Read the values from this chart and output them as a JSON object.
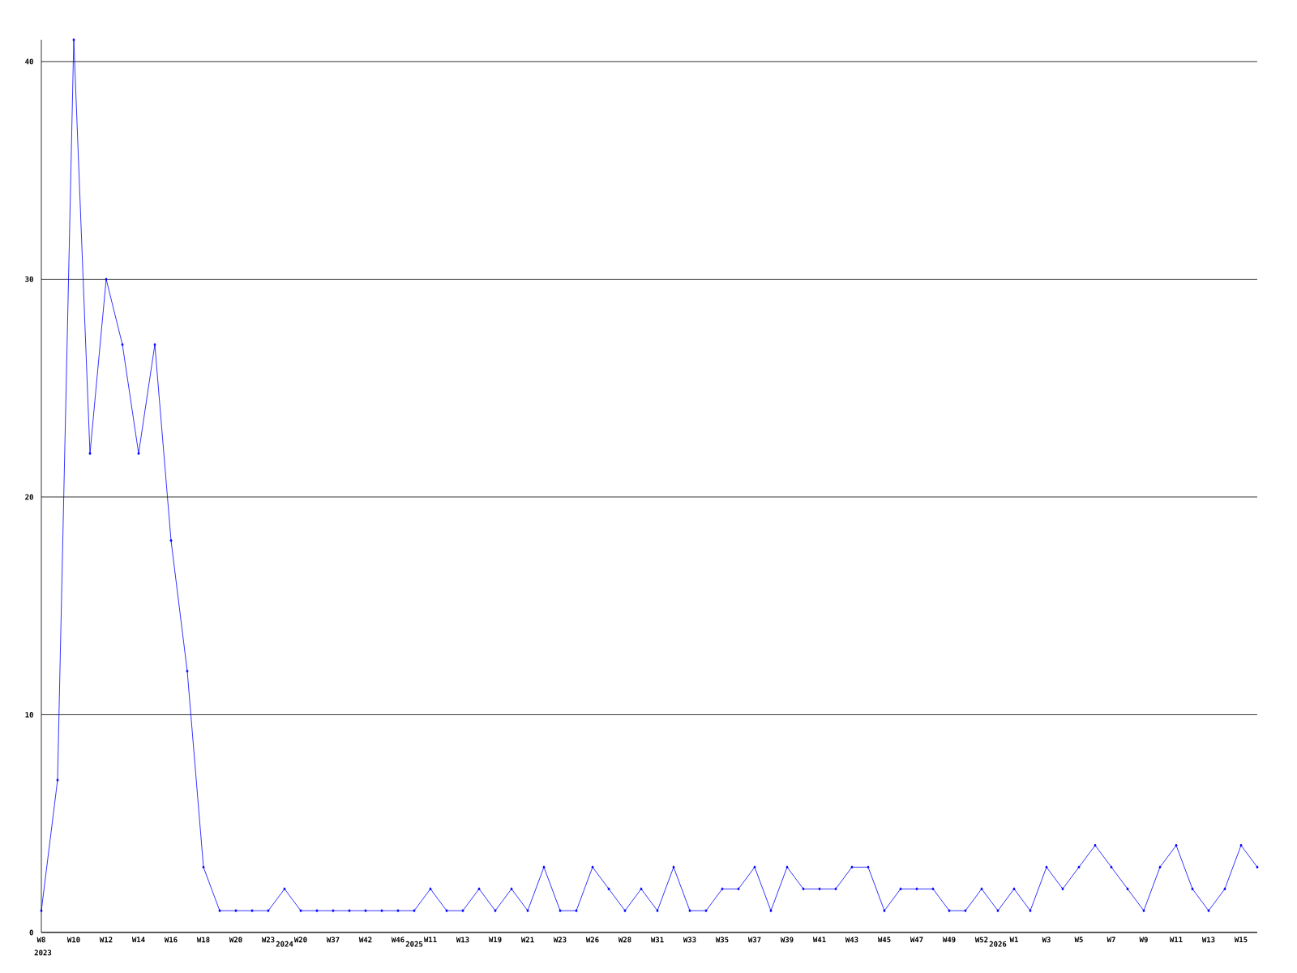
{
  "chart_data": {
    "type": "line",
    "color": "#0000ff",
    "marker": "diamond",
    "grid": "y",
    "categories": [
      "W8",
      null,
      "W10",
      null,
      "W12",
      null,
      "W14",
      null,
      "W16",
      null,
      "W18",
      null,
      "W20",
      null,
      "W23",
      "2024",
      "W20",
      null,
      "W37",
      null,
      "W42",
      null,
      "W46",
      "2025",
      "W11",
      null,
      "W13",
      null,
      "W19",
      null,
      "W21",
      null,
      "W23",
      null,
      "W26",
      null,
      "W28",
      null,
      "W31",
      null,
      "W33",
      null,
      "W35",
      null,
      "W37",
      null,
      "W39",
      null,
      "W41",
      null,
      "W43",
      null,
      "W45",
      null,
      "W47",
      null,
      "W49",
      null,
      "W52",
      "2026",
      "W1",
      null,
      "W3",
      null,
      "W5",
      null,
      "W7",
      null,
      "W9",
      null,
      "W11",
      null,
      "W13",
      null,
      "W15",
      null
    ],
    "values": [
      1,
      7,
      41,
      22,
      30,
      27,
      22,
      27,
      18,
      12,
      3,
      1,
      1,
      1,
      1,
      2,
      1,
      1,
      1,
      1,
      1,
      1,
      1,
      1,
      2,
      1,
      1,
      2,
      1,
      2,
      1,
      3,
      1,
      1,
      3,
      2,
      1,
      2,
      1,
      3,
      1,
      1,
      2,
      2,
      3,
      1,
      3,
      2,
      2,
      2,
      3,
      3,
      1,
      2,
      2,
      2,
      1,
      1,
      2,
      1,
      2,
      1,
      3,
      2,
      3,
      4,
      3,
      2,
      1,
      3,
      4,
      2,
      1,
      2,
      4,
      3
    ],
    "ylim": [
      0,
      41
    ],
    "yticks": [
      0,
      10,
      20,
      30,
      40
    ],
    "annotations": [
      "2023"
    ]
  }
}
